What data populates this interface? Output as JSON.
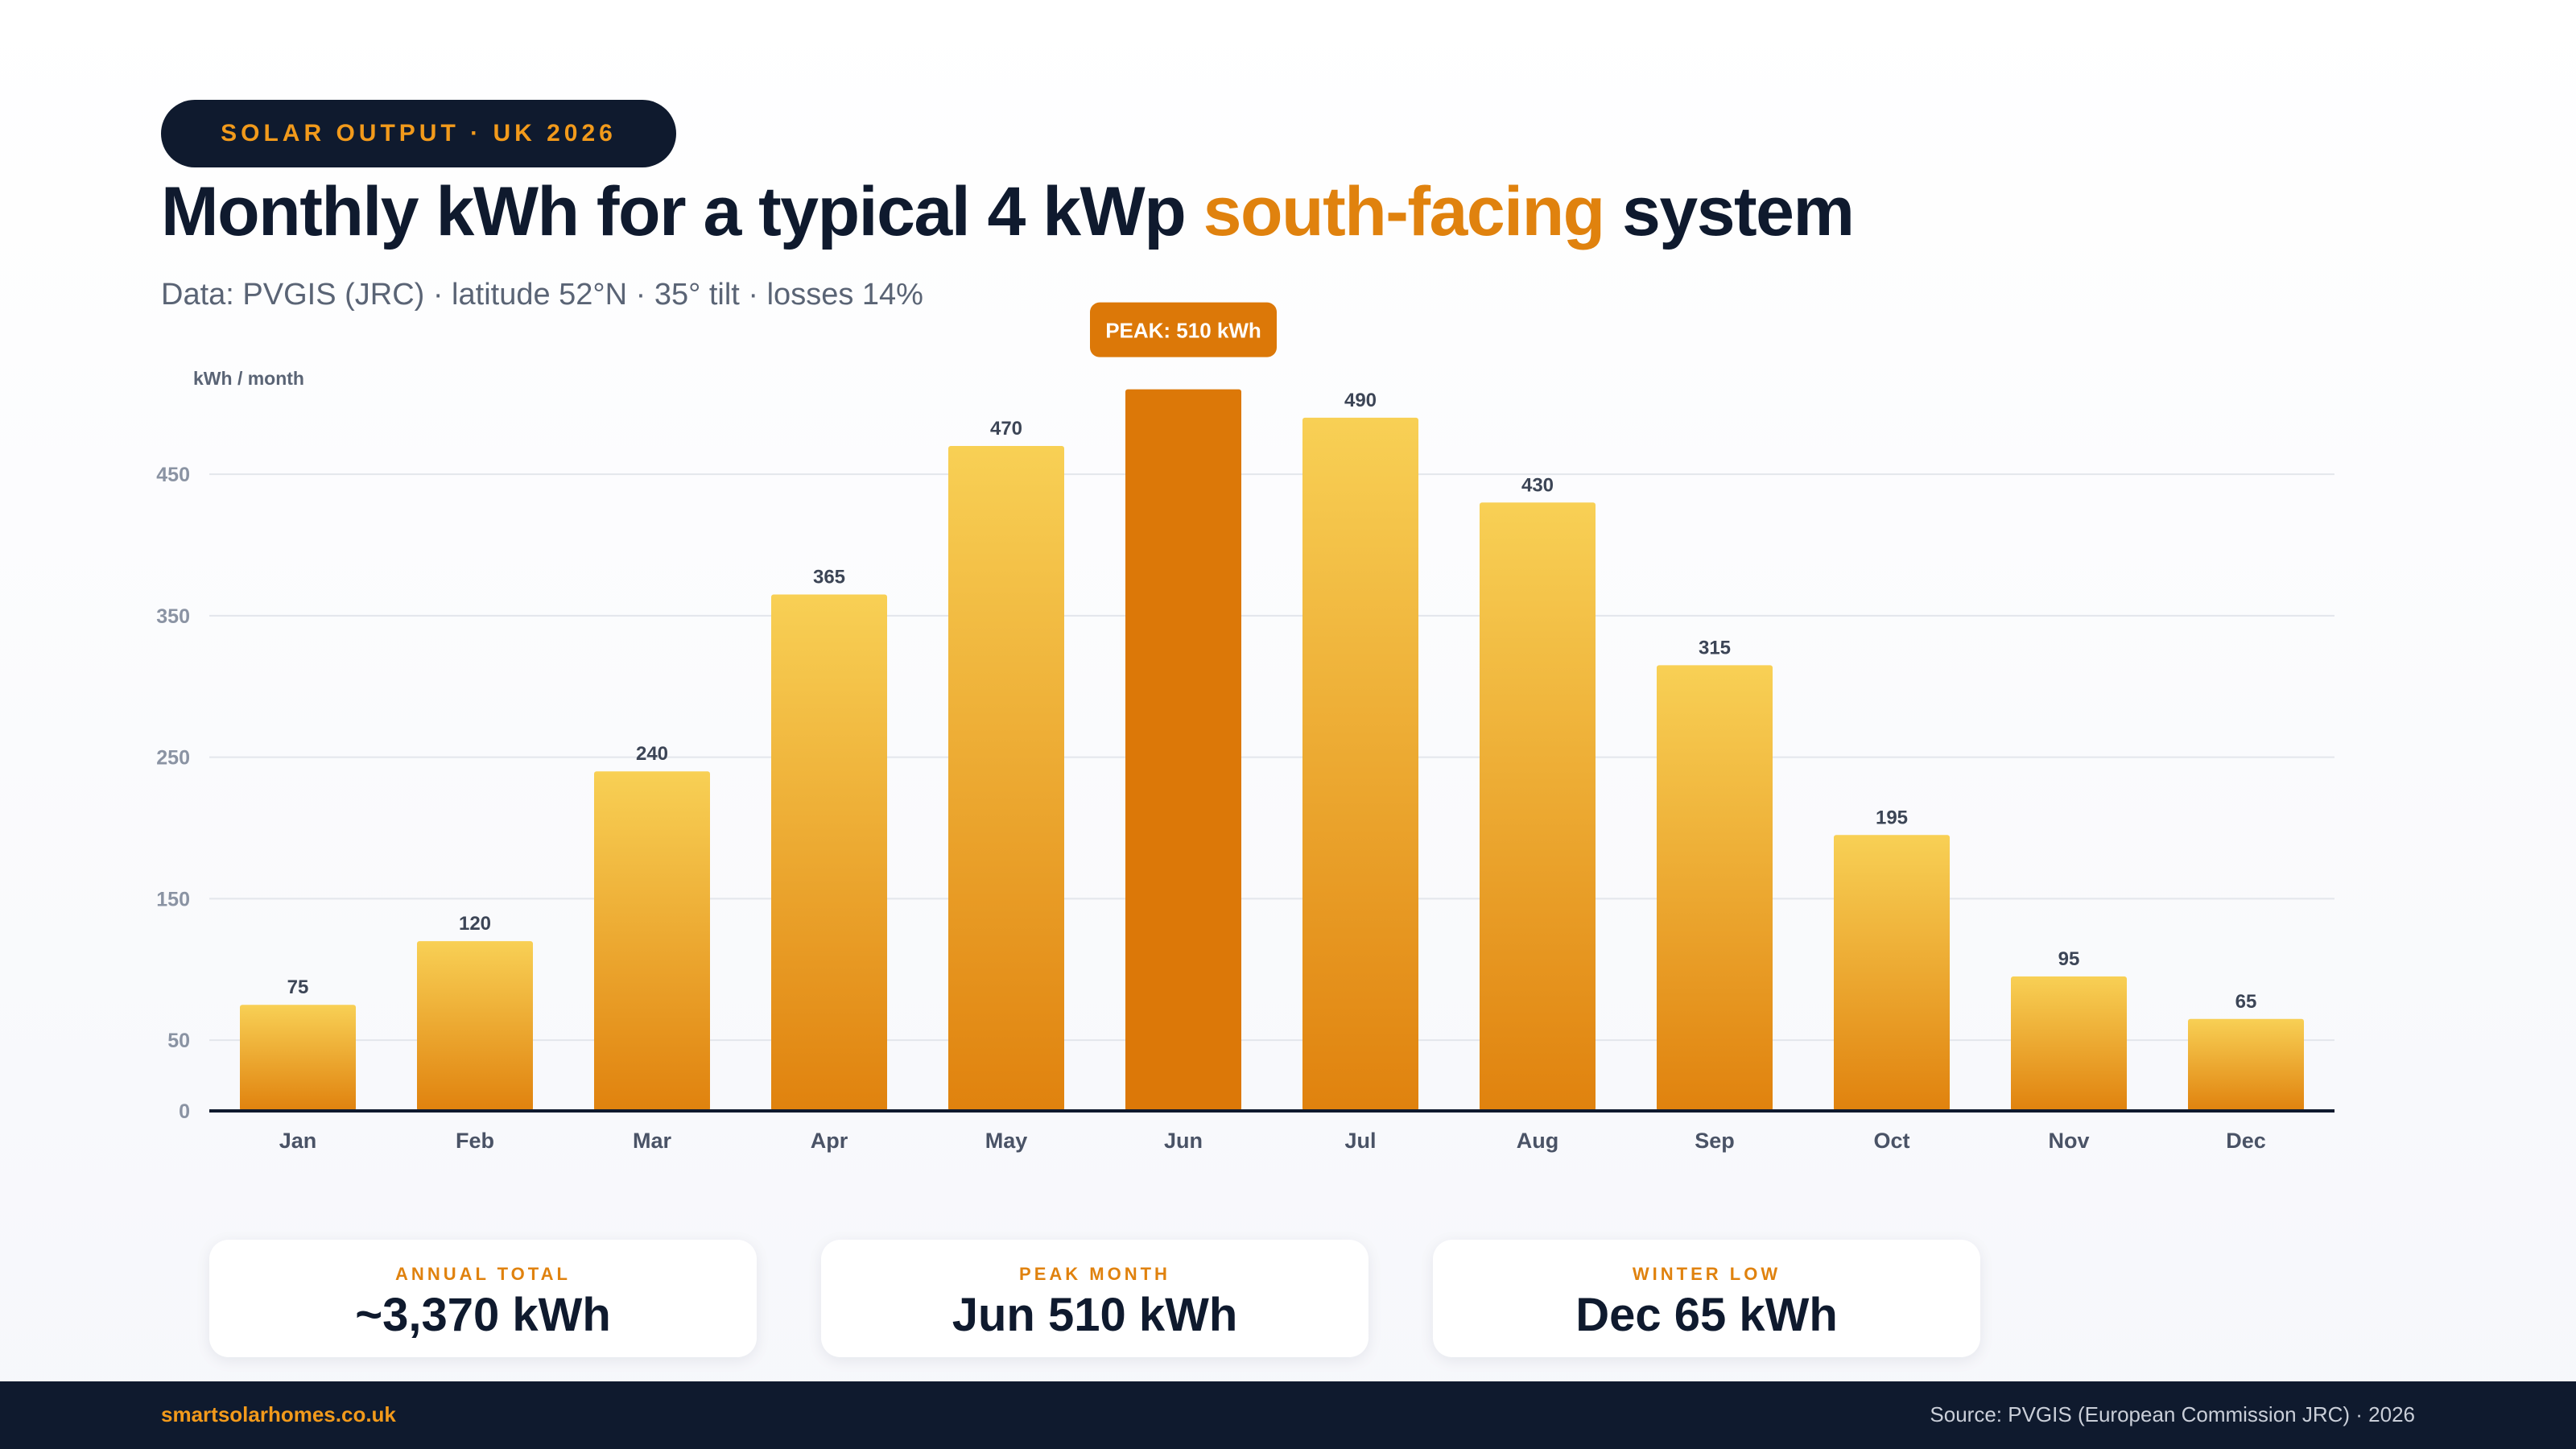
{
  "header": {
    "kicker": "SOLAR OUTPUT · UK 2026",
    "title_before": "Monthly kWh for a typical 4 kWp ",
    "title_accent": "south-facing",
    "title_after": " system",
    "subtitle": "Data: PVGIS (JRC) · latitude 52°N · 35° tilt · losses 14%"
  },
  "colors": {
    "accent": "#e0820e",
    "peak_bar": "#dc7808",
    "bar_top": "#f8d055",
    "bar_bottom": "#e0820e",
    "navy": "#0f1a2e"
  },
  "chart_data": {
    "type": "bar",
    "ylabel": "kWh / month",
    "categories": [
      "Jan",
      "Feb",
      "Mar",
      "Apr",
      "May",
      "Jun",
      "Jul",
      "Aug",
      "Sep",
      "Oct",
      "Nov",
      "Dec"
    ],
    "values": [
      75,
      120,
      240,
      365,
      470,
      510,
      490,
      430,
      315,
      195,
      95,
      65
    ],
    "data_labels": [
      "75",
      "120",
      "240",
      "365",
      "470",
      "",
      "490",
      "430",
      "315",
      "195",
      "95",
      "65"
    ],
    "yticks": [
      0,
      50,
      150,
      250,
      350,
      450
    ],
    "ylim": [
      0,
      530
    ],
    "grid": true,
    "highlight_index": 5,
    "peak_label": "PEAK: 510 kWh"
  },
  "stats": [
    {
      "label": "ANNUAL TOTAL",
      "value": "~3,370 kWh"
    },
    {
      "label": "PEAK MONTH",
      "value": "Jun 510 kWh"
    },
    {
      "label": "WINTER LOW",
      "value": "Dec 65 kWh"
    }
  ],
  "footer": {
    "site": "smartsolarhomes.co.uk",
    "source": "Source: PVGIS (European Commission JRC) · 2026"
  }
}
